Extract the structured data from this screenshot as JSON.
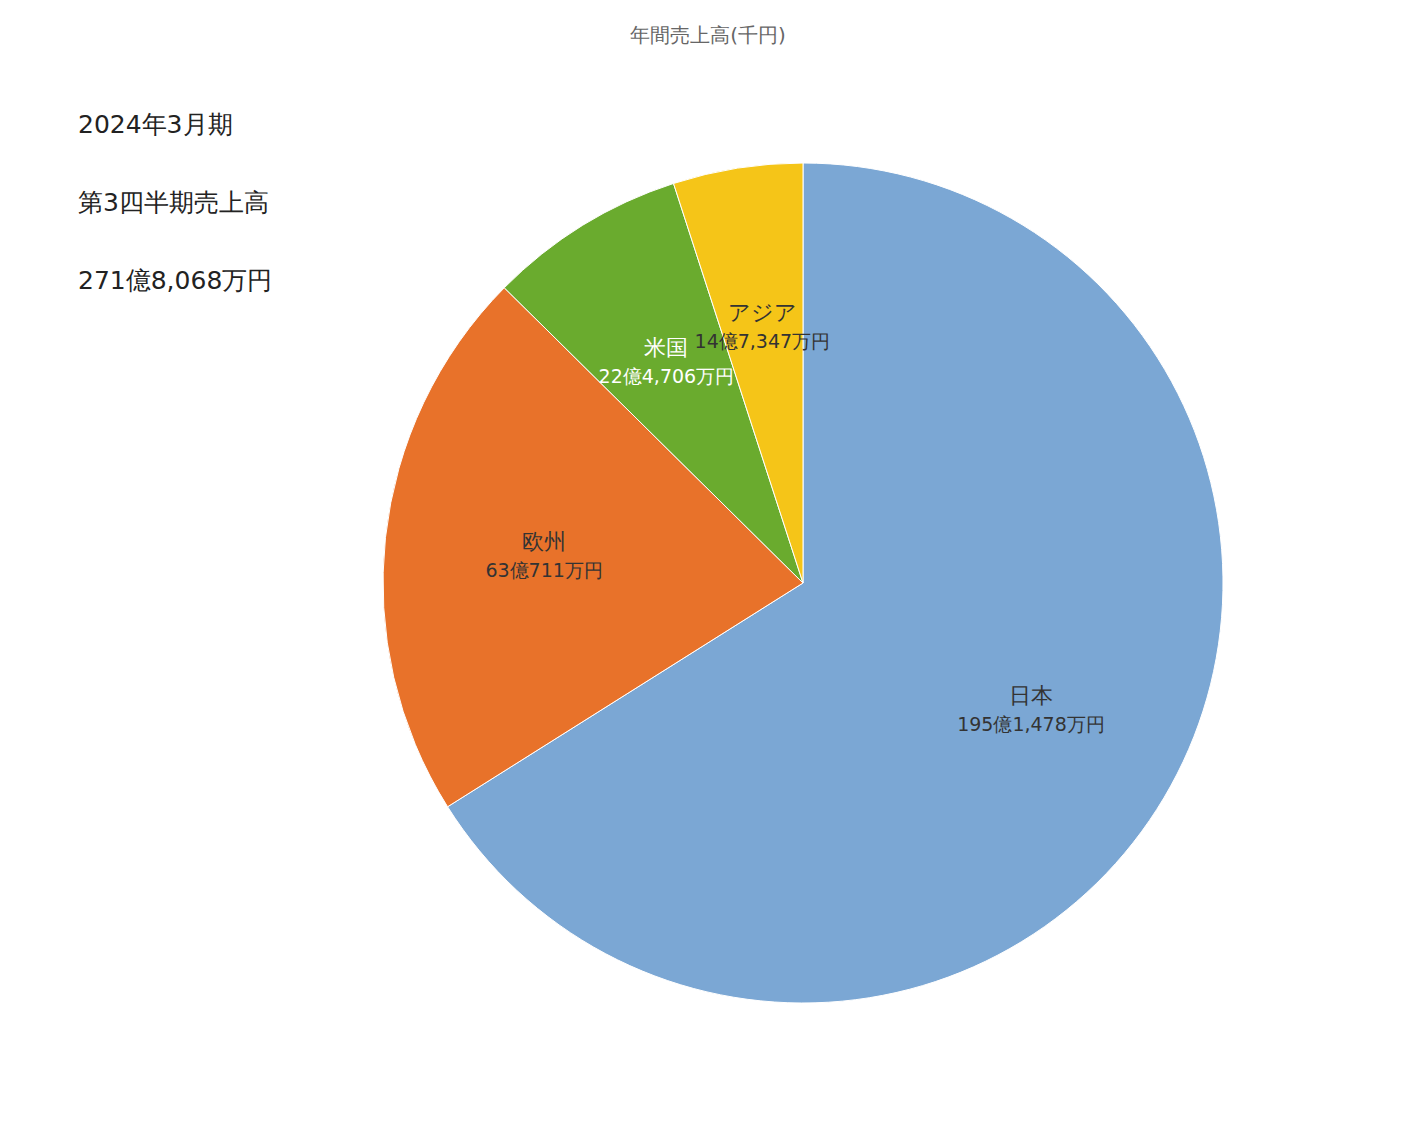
{
  "chart_data": {
    "type": "pie",
    "title": "年間売上高(千円)",
    "subtitle": [
      "2024年3月期",
      "第3四半期売上高",
      "271億8,068万円"
    ],
    "categories": [
      "日本",
      "欧州",
      "米国",
      "アジア"
    ],
    "values": [
      1951478,
      630711,
      224706,
      147347
    ],
    "value_labels": [
      "195億1,478万円",
      "63億711万円",
      "22億4,706万円",
      "14億7,347万円"
    ],
    "colors": [
      "#7BA7D4",
      "#E8722A",
      "#6AAB2E",
      "#F5C518"
    ],
    "data_labels": true
  }
}
